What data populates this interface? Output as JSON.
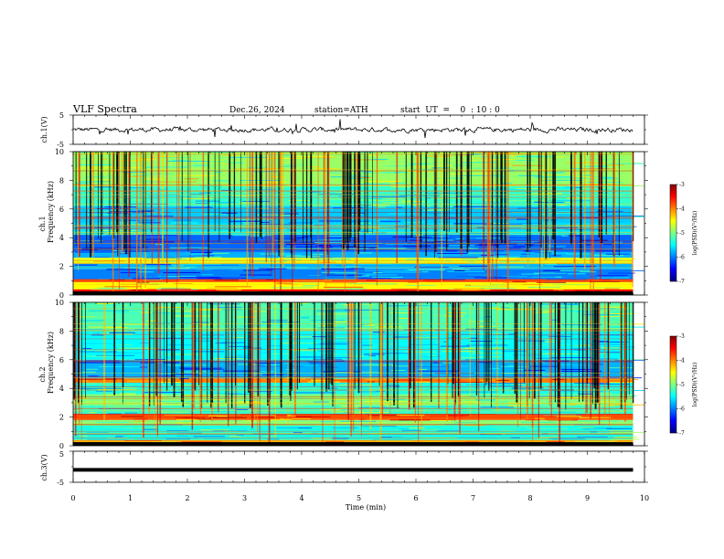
{
  "header": {
    "title": "VLF  Spectra",
    "date": "Dec.26, 2024",
    "station": "station=ATH",
    "start_ut": "start  UT  =    0  : 10 : 0"
  },
  "chart_data": [
    {
      "id": "ch1-waveform",
      "type": "line",
      "ylabel": "ch.1(V)",
      "ylim": [
        -5,
        5
      ],
      "y_ticks": [
        "5",
        "-5"
      ],
      "baseline_value": 0,
      "xlim": [
        0,
        10
      ],
      "x_end": 9.8
    },
    {
      "id": "ch1-spectrogram",
      "type": "heatmap",
      "ylabel_line1": "ch.1",
      "ylabel_line2": "Frequency  (kHz)",
      "ylim": [
        0,
        10
      ],
      "y_ticks": [
        "0",
        "2",
        "4",
        "6",
        "8",
        "10"
      ],
      "xlim": [
        0,
        10
      ],
      "x_end": 9.8,
      "colorbar": {
        "label": "log(PSD)(V²/Hz)",
        "range": [
          -7,
          -3
        ],
        "ticks": [
          "-3",
          "-4",
          "-5",
          "-6",
          "-7"
        ]
      },
      "bands_khz": [
        {
          "from": 0.0,
          "to": 0.4,
          "level": -3.5
        },
        {
          "from": 0.4,
          "to": 0.9,
          "level": -4.5
        },
        {
          "from": 0.9,
          "to": 1.1,
          "level": -3.8
        },
        {
          "from": 1.1,
          "to": 1.8,
          "level": -6.0
        },
        {
          "from": 1.8,
          "to": 2.2,
          "level": -5.8
        },
        {
          "from": 2.2,
          "to": 2.6,
          "level": -4.6
        },
        {
          "from": 2.6,
          "to": 3.0,
          "level": -5.8
        },
        {
          "from": 3.0,
          "to": 4.2,
          "level": -6.1
        },
        {
          "from": 4.2,
          "to": 5.0,
          "level": -5.6
        },
        {
          "from": 5.0,
          "to": 6.2,
          "level": -5.7
        },
        {
          "from": 6.2,
          "to": 7.6,
          "level": -5.3
        },
        {
          "from": 7.6,
          "to": 10.0,
          "level": -4.9
        }
      ]
    },
    {
      "id": "ch2-spectrogram",
      "type": "heatmap",
      "ylabel_line1": "ch.2",
      "ylabel_line2": "Frequency  (kHz)",
      "ylim": [
        0,
        10
      ],
      "y_ticks": [
        "0",
        "2",
        "4",
        "6",
        "8",
        "10"
      ],
      "xlim": [
        0,
        10
      ],
      "x_end": 9.8,
      "colorbar": {
        "label": "log(PSD)(V²/Hz)",
        "range": [
          -7,
          -3
        ],
        "ticks": [
          "-3",
          "-4",
          "-5",
          "-6",
          "-7"
        ]
      },
      "bands_khz": [
        {
          "from": 0.0,
          "to": 0.4,
          "level": -4.2
        },
        {
          "from": 0.4,
          "to": 1.4,
          "level": -5.4
        },
        {
          "from": 1.4,
          "to": 1.8,
          "level": -5.0
        },
        {
          "from": 1.8,
          "to": 2.2,
          "level": -3.8
        },
        {
          "from": 2.2,
          "to": 2.8,
          "level": -5.3
        },
        {
          "from": 2.8,
          "to": 3.6,
          "level": -5.0
        },
        {
          "from": 3.6,
          "to": 4.4,
          "level": -5.4
        },
        {
          "from": 4.4,
          "to": 4.7,
          "level": -4.0
        },
        {
          "from": 4.7,
          "to": 6.0,
          "level": -5.8
        },
        {
          "from": 6.0,
          "to": 8.0,
          "level": -5.5
        },
        {
          "from": 8.0,
          "to": 10.0,
          "level": -5.2
        }
      ]
    },
    {
      "id": "ch3-waveform",
      "type": "line",
      "ylabel": "ch.3(V)",
      "ylim": [
        -5,
        5
      ],
      "y_ticks": [
        "5",
        "-5"
      ],
      "baseline_value": -1,
      "xlim": [
        0,
        10
      ],
      "x_end": 9.8,
      "xlabel": "Time  (min)",
      "x_ticks": [
        "0",
        "1",
        "2",
        "3",
        "4",
        "5",
        "6",
        "7",
        "8",
        "9",
        "10"
      ]
    }
  ]
}
